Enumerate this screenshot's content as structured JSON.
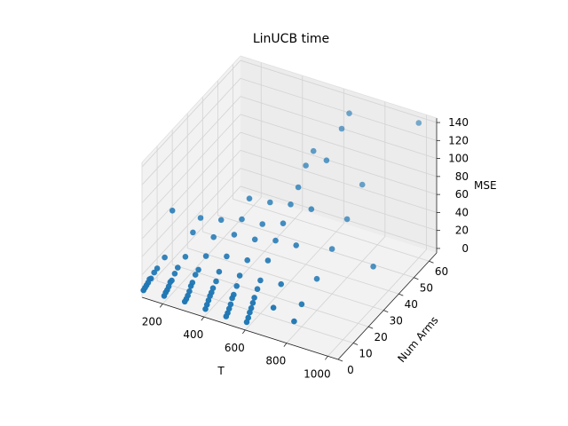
{
  "chart_data": {
    "type": "scatter",
    "projection": "3d",
    "title": "LinUCB time",
    "xlabel": "T",
    "ylabel": "Num Arms",
    "zlabel": "MSE",
    "xlim": [
      100,
      1050
    ],
    "ylim": [
      0,
      65
    ],
    "zlim": [
      -5,
      145
    ],
    "xticks": [
      "200",
      "400",
      "600",
      "800",
      "1000"
    ],
    "yticks": [
      "0",
      "10",
      "20",
      "30",
      "40",
      "50",
      "60"
    ],
    "zticks": [
      "0",
      "20",
      "40",
      "60",
      "80",
      "100",
      "120",
      "140"
    ],
    "grid": true,
    "color": "#1f77b4",
    "points": [
      {
        "x": 100,
        "y": 1,
        "z": 1
      },
      {
        "x": 100,
        "y": 2,
        "z": 2
      },
      {
        "x": 100,
        "y": 3,
        "z": 3
      },
      {
        "x": 100,
        "y": 4,
        "z": 4
      },
      {
        "x": 100,
        "y": 5,
        "z": 6
      },
      {
        "x": 100,
        "y": 6,
        "z": 5
      },
      {
        "x": 100,
        "y": 8,
        "z": 8
      },
      {
        "x": 100,
        "y": 10,
        "z": 9
      },
      {
        "x": 100,
        "y": 15,
        "z": 12
      },
      {
        "x": 100,
        "y": 20,
        "z": 55
      },
      {
        "x": 200,
        "y": 1,
        "z": 2
      },
      {
        "x": 200,
        "y": 2,
        "z": 4
      },
      {
        "x": 200,
        "y": 3,
        "z": 5
      },
      {
        "x": 200,
        "y": 4,
        "z": 7
      },
      {
        "x": 200,
        "y": 5,
        "z": 10
      },
      {
        "x": 200,
        "y": 6,
        "z": 10
      },
      {
        "x": 200,
        "y": 8,
        "z": 14
      },
      {
        "x": 200,
        "y": 10,
        "z": 17
      },
      {
        "x": 200,
        "y": 15,
        "z": 20
      },
      {
        "x": 200,
        "y": 20,
        "z": 38
      },
      {
        "x": 200,
        "y": 25,
        "z": 45
      },
      {
        "x": 300,
        "y": 1,
        "z": 3
      },
      {
        "x": 300,
        "y": 2,
        "z": 4
      },
      {
        "x": 300,
        "y": 3,
        "z": 6
      },
      {
        "x": 300,
        "y": 4,
        "z": 9
      },
      {
        "x": 300,
        "y": 5,
        "z": 13
      },
      {
        "x": 300,
        "y": 6,
        "z": 15
      },
      {
        "x": 300,
        "y": 8,
        "z": 20
      },
      {
        "x": 300,
        "y": 10,
        "z": 22
      },
      {
        "x": 300,
        "y": 15,
        "z": 28
      },
      {
        "x": 300,
        "y": 20,
        "z": 40
      },
      {
        "x": 300,
        "y": 25,
        "z": 50
      },
      {
        "x": 400,
        "y": 1,
        "z": 2
      },
      {
        "x": 400,
        "y": 2,
        "z": 5
      },
      {
        "x": 400,
        "y": 3,
        "z": 8
      },
      {
        "x": 400,
        "y": 4,
        "z": 11
      },
      {
        "x": 400,
        "y": 5,
        "z": 13
      },
      {
        "x": 400,
        "y": 6,
        "z": 16
      },
      {
        "x": 400,
        "y": 8,
        "z": 20
      },
      {
        "x": 400,
        "y": 10,
        "z": 27
      },
      {
        "x": 400,
        "y": 15,
        "z": 35
      },
      {
        "x": 400,
        "y": 20,
        "z": 50
      },
      {
        "x": 400,
        "y": 25,
        "z": 58
      },
      {
        "x": 400,
        "y": 30,
        "z": 72
      },
      {
        "x": 500,
        "y": 1,
        "z": 1
      },
      {
        "x": 500,
        "y": 2,
        "z": 3
      },
      {
        "x": 500,
        "y": 3,
        "z": 6
      },
      {
        "x": 500,
        "y": 4,
        "z": 9
      },
      {
        "x": 500,
        "y": 5,
        "z": 14
      },
      {
        "x": 500,
        "y": 6,
        "z": 16
      },
      {
        "x": 500,
        "y": 8,
        "z": 22
      },
      {
        "x": 500,
        "y": 10,
        "z": 30
      },
      {
        "x": 500,
        "y": 15,
        "z": 38
      },
      {
        "x": 500,
        "y": 20,
        "z": 52
      },
      {
        "x": 500,
        "y": 25,
        "z": 60
      },
      {
        "x": 500,
        "y": 30,
        "z": 75
      },
      {
        "x": 600,
        "y": 1,
        "z": 2
      },
      {
        "x": 600,
        "y": 2,
        "z": 5
      },
      {
        "x": 600,
        "y": 3,
        "z": 9
      },
      {
        "x": 600,
        "y": 4,
        "z": 12
      },
      {
        "x": 600,
        "y": 5,
        "z": 16
      },
      {
        "x": 600,
        "y": 6,
        "z": 20
      },
      {
        "x": 600,
        "y": 8,
        "z": 26
      },
      {
        "x": 600,
        "y": 10,
        "z": 32
      },
      {
        "x": 600,
        "y": 15,
        "z": 45
      },
      {
        "x": 600,
        "y": 20,
        "z": 58
      },
      {
        "x": 600,
        "y": 25,
        "z": 68
      },
      {
        "x": 600,
        "y": 30,
        "z": 80
      },
      {
        "x": 600,
        "y": 35,
        "z": 90
      },
      {
        "x": 600,
        "y": 40,
        "z": 105
      },
      {
        "x": 600,
        "y": 45,
        "z": 112
      },
      {
        "x": 700,
        "y": 5,
        "z": 18
      },
      {
        "x": 700,
        "y": 10,
        "z": 35
      },
      {
        "x": 700,
        "y": 20,
        "z": 60
      },
      {
        "x": 700,
        "y": 30,
        "z": 82
      },
      {
        "x": 700,
        "y": 40,
        "z": 118
      },
      {
        "x": 700,
        "y": 50,
        "z": 135
      },
      {
        "x": 700,
        "y": 55,
        "z": 143
      },
      {
        "x": 800,
        "y": 5,
        "z": 10
      },
      {
        "x": 800,
        "y": 10,
        "z": 20
      },
      {
        "x": 800,
        "y": 20,
        "z": 30
      },
      {
        "x": 800,
        "y": 30,
        "z": 45
      },
      {
        "x": 800,
        "y": 40,
        "z": 60
      },
      {
        "x": 800,
        "y": 50,
        "z": 80
      },
      {
        "x": 1000,
        "y": 30,
        "z": 40
      },
      {
        "x": 1000,
        "y": 60,
        "z": 145
      }
    ]
  }
}
